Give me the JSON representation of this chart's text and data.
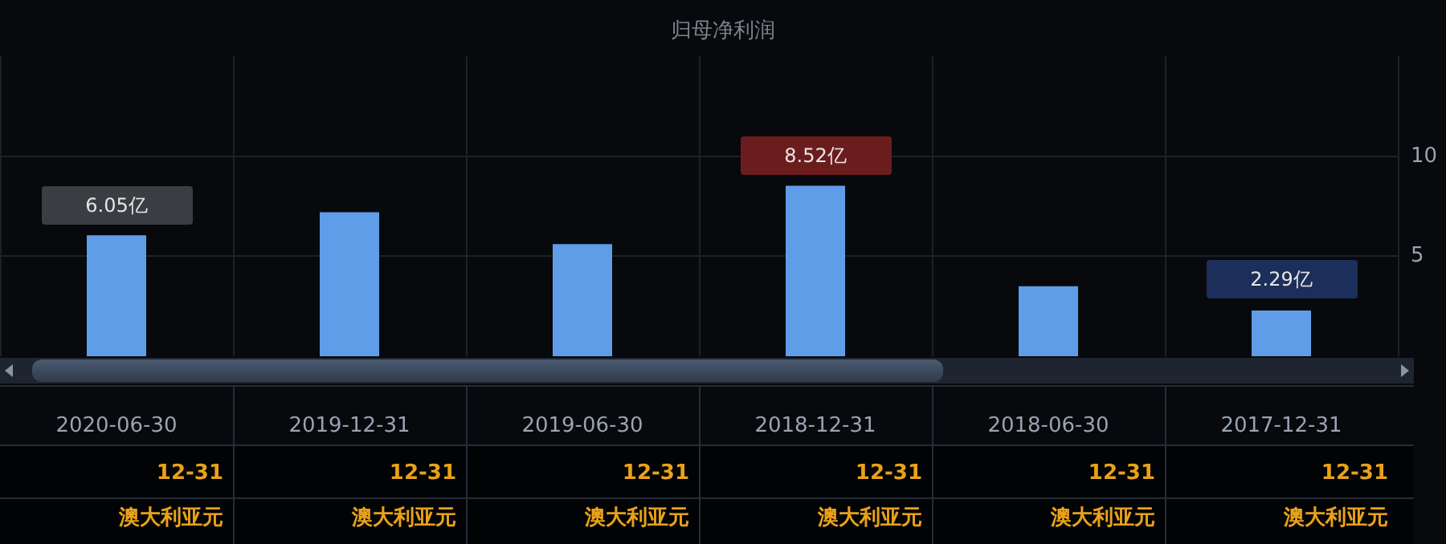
{
  "chart_data": {
    "type": "bar",
    "title": "归母净利润",
    "categories": [
      "2020-06-30",
      "2019-12-31",
      "2019-06-30",
      "2018-12-31",
      "2018-06-30",
      "2017-12-31"
    ],
    "values": [
      6.05,
      7.2,
      5.6,
      8.52,
      3.5,
      2.29
    ],
    "value_labels": [
      "6.05亿",
      null,
      null,
      "8.52亿",
      null,
      "2.29亿"
    ],
    "color": "#5f9de9",
    "ylim": [
      0,
      15
    ],
    "yticks": [
      5,
      10
    ],
    "grid": true,
    "annotations": [
      "12-31",
      "澳大利亚元",
      "12-31",
      "澳大利亚元",
      "12-31",
      "澳大利亚元",
      "12-31",
      "澳大利亚元",
      "12-31",
      "澳大利亚元",
      "12-31",
      "澳大利亚元"
    ]
  }
}
